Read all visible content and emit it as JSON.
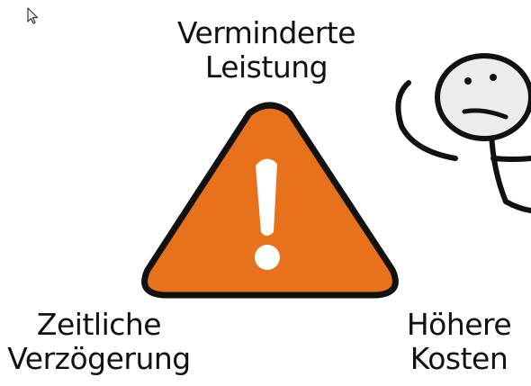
{
  "labels": {
    "top": [
      "Verminderte",
      "Leistung"
    ],
    "bottom_left": [
      "Zeitliche",
      "Verzögerung"
    ],
    "bottom_right": [
      "Höhere",
      "Kosten"
    ]
  },
  "icons": {
    "warning": "exclamation-warning-triangle-icon",
    "figure": "stick-figure-frowning",
    "pointer": "mouse-pointer-icon"
  },
  "colors": {
    "triangle_fill": "#E8711B",
    "outline": "#111111",
    "exclamation": "#ffffff",
    "face": "#ececec"
  }
}
